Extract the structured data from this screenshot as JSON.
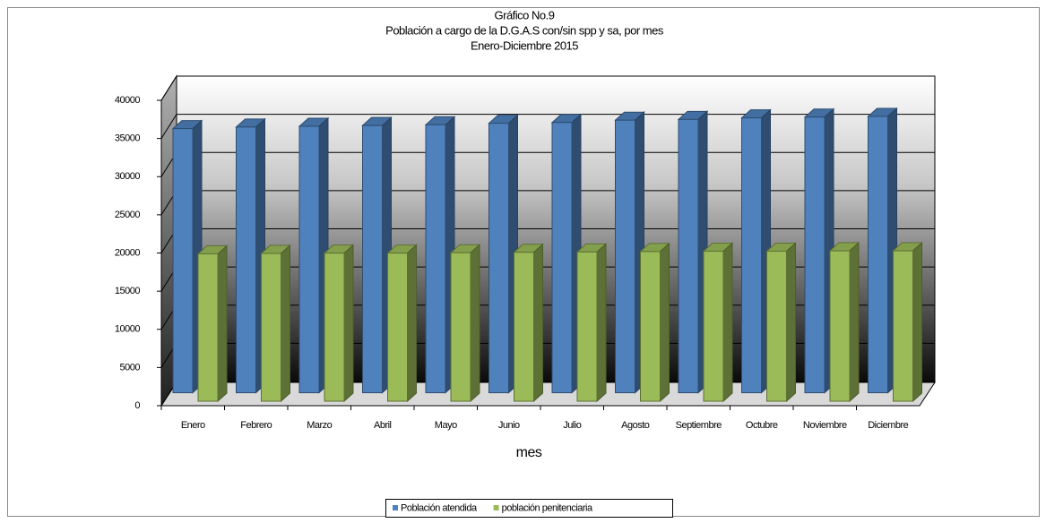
{
  "chart_data": {
    "type": "bar3d",
    "title": "Gráfico No.9",
    "subtitle": "Población a cargo de la D.G.A.S con/sin spp y sa, por mes",
    "period": "Enero-Diciembre 2015",
    "x_label": "mes",
    "categories": [
      "Enero",
      "Febrero",
      "Marzo",
      "Abril",
      "Mayo",
      "Junio",
      "Julio",
      "Agosto",
      "Septiembre",
      "Octubre",
      "Noviembre",
      "Diciembre"
    ],
    "series": [
      {
        "name": "Población atendida",
        "color": "#4f81bd",
        "values": [
          34600,
          34800,
          34900,
          35000,
          35100,
          35300,
          35400,
          35700,
          35800,
          36000,
          36100,
          36200
        ]
      },
      {
        "name": "población penitenciaria",
        "color": "#9bbb59",
        "values": [
          19300,
          19350,
          19400,
          19400,
          19450,
          19500,
          19550,
          19600,
          19650,
          19650,
          19700,
          19700
        ]
      }
    ],
    "ylim": [
      0,
      40000
    ],
    "yticks": [
      0,
      5000,
      10000,
      15000,
      20000,
      25000,
      30000,
      35000,
      40000
    ],
    "grid": true,
    "legend": "bottom"
  }
}
